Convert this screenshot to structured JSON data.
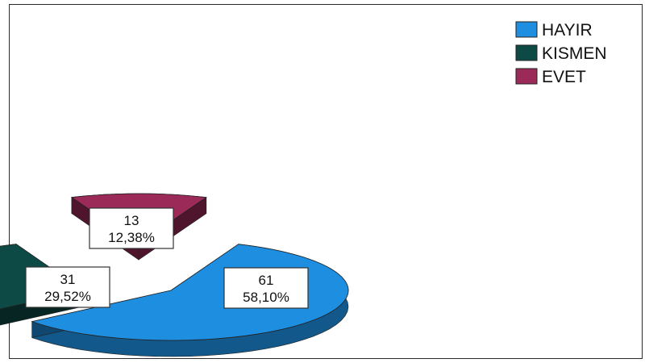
{
  "chart_data": {
    "type": "pie",
    "categories": [
      "HAYIR",
      "KISMEN",
      "EVET"
    ],
    "values": [
      61,
      31,
      13
    ],
    "percent_labels": [
      "58,10%",
      "29,52%",
      "12,38%"
    ],
    "exploded": true,
    "three_d": true,
    "legend_position": "top-right",
    "colors": {
      "HAYIR": "#1e8ee0",
      "KISMEN": "#0e4a45",
      "EVET": "#9c2a58"
    },
    "title": ""
  }
}
